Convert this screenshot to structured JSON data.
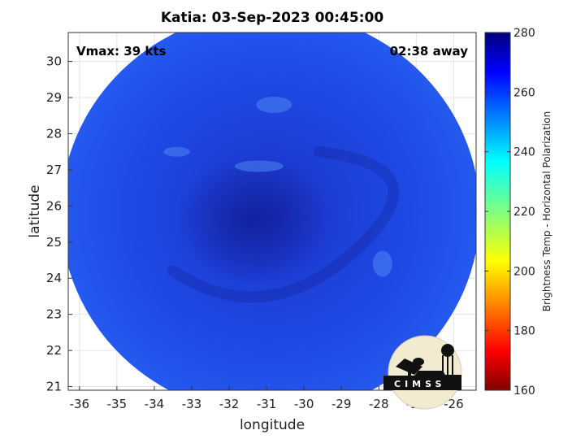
{
  "chart_data": {
    "type": "heatmap",
    "title": "Katia: 03-Sep-2023 00:45:00",
    "xlabel": "longitude",
    "ylabel": "latitude",
    "xlim": [
      -36.3,
      -25.4
    ],
    "ylim": [
      20.9,
      30.8
    ],
    "x_ticks": [
      "-36",
      "-35",
      "-34",
      "-33",
      "-32",
      "-31",
      "-30",
      "-29",
      "-28",
      "-27",
      "-26"
    ],
    "y_ticks": [
      "30",
      "29",
      "28",
      "27",
      "26",
      "25",
      "24",
      "23",
      "22",
      "21"
    ],
    "grid": true,
    "annotations": {
      "top_left": "Vmax: 39 kts",
      "top_right": "02:38 away"
    },
    "colorbar": {
      "label": "Brightness Temp - Horizontal Polarization",
      "min": 160,
      "max": 280,
      "ticks": [
        "280",
        "260",
        "240",
        "220",
        "200",
        "180",
        "160"
      ],
      "colormap": "jet"
    },
    "swath": {
      "center_lon": -30.9,
      "center_lat": 25.8,
      "radius_deg": 5.6,
      "base_value": 262
    },
    "logo": "CIMSS"
  }
}
